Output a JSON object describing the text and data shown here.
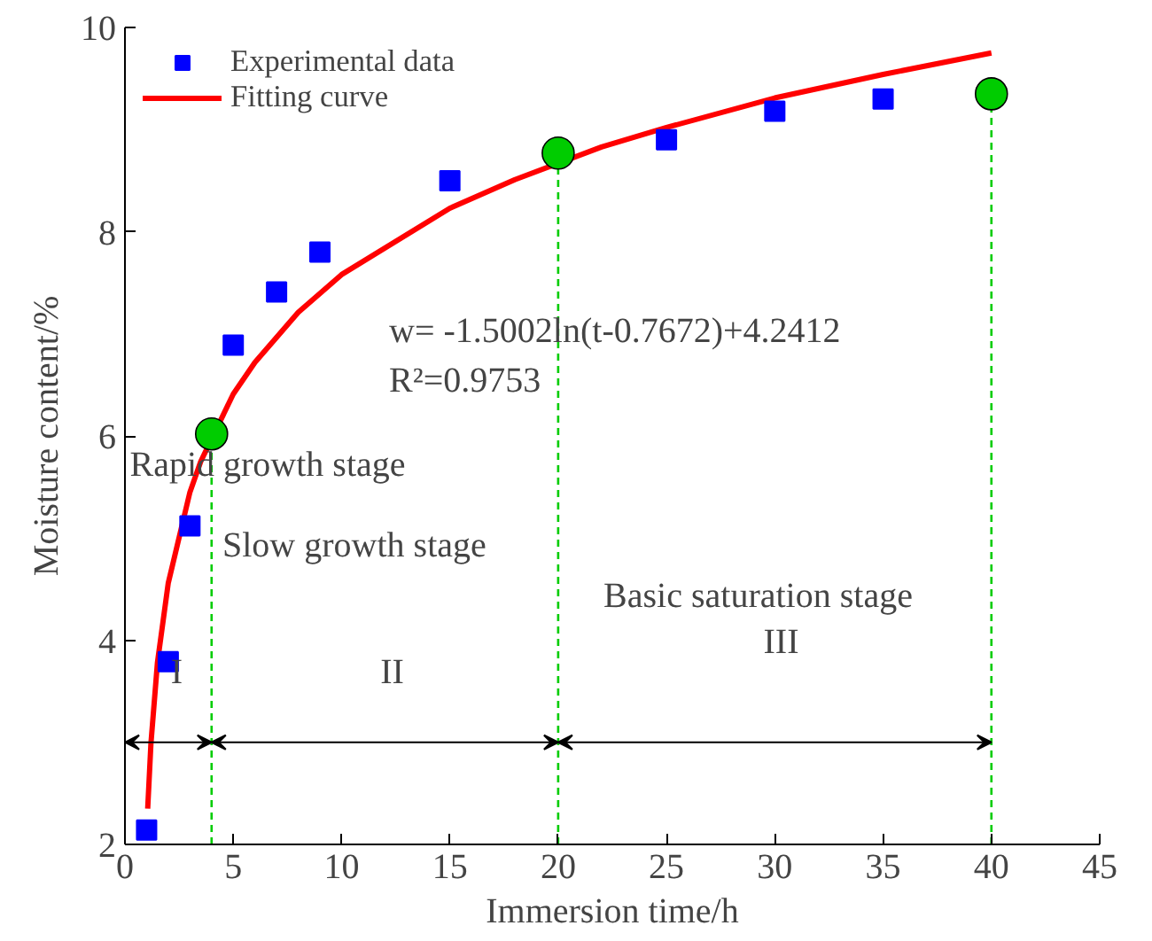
{
  "chart_data": {
    "type": "scatter",
    "xlabel": "Immersion time/h",
    "ylabel": "Moisture content/%",
    "xlim": [
      0,
      45
    ],
    "ylim": [
      2,
      10
    ],
    "xticks": [
      0,
      5,
      10,
      15,
      20,
      25,
      30,
      35,
      40,
      45
    ],
    "yticks": [
      2,
      4,
      6,
      8,
      10
    ],
    "grid": false,
    "legend": "top left",
    "series": [
      {
        "name": "Experimental data",
        "marker": "square",
        "color": "#0000ff",
        "x": [
          1,
          2,
          3,
          5,
          7,
          9,
          15,
          25,
          30,
          35
        ],
        "values": [
          2.14,
          3.79,
          5.12,
          6.89,
          7.41,
          7.8,
          8.5,
          8.9,
          9.18,
          9.3
        ]
      },
      {
        "name": "Fitting curve",
        "type": "line",
        "marker": "none",
        "line_style": "solid",
        "color": "#ff0000",
        "x": [
          1.05,
          1.2,
          1.5,
          2,
          3,
          3.5,
          5,
          6,
          8,
          10,
          15,
          18,
          22,
          25,
          30,
          35,
          40
        ],
        "values": [
          2.35,
          2.99,
          3.78,
          4.56,
          5.45,
          5.75,
          6.41,
          6.72,
          7.21,
          7.58,
          8.23,
          8.51,
          8.83,
          9.02,
          9.31,
          9.54,
          9.75
        ]
      },
      {
        "marker": "circle",
        "color": "#00cc00",
        "x": [
          4,
          20,
          40
        ],
        "values": [
          6.02,
          8.77,
          9.35
        ]
      }
    ],
    "ref_lines": [
      {
        "axis": "x",
        "value": 4,
        "color": "#00cc00",
        "line_style": "dashed"
      },
      {
        "axis": "x",
        "value": 20,
        "color": "#00cc00",
        "line_style": "dashed"
      },
      {
        "axis": "x",
        "value": 40,
        "color": "#00cc00",
        "line_style": "dashed"
      }
    ],
    "annotations": [
      "w= -1.5002ln(t-0.7672)+4.2412",
      "R²=0.9753",
      "Rapid growth stage",
      "Slow growth stage",
      "Basic saturation stage",
      "I",
      "II",
      "III"
    ]
  }
}
